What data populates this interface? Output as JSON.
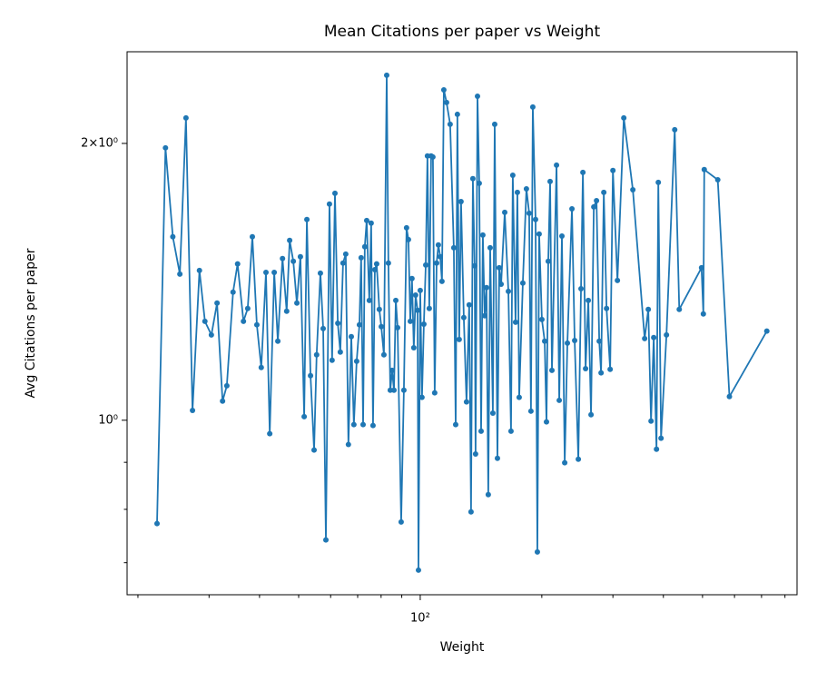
{
  "chart_data": {
    "type": "line",
    "title": "Mean Citations per paper vs Weight",
    "x_label": "Weight",
    "y_label": "Avg Citations per paper",
    "xscale": "log",
    "yscale": "log",
    "color": "#1f77b4",
    "xlim": [
      18.8,
      857
    ],
    "ylim": [
      0.646,
      2.516
    ],
    "xticks": [
      {
        "value": 100,
        "label": "10²"
      }
    ],
    "yticks": [
      {
        "value": 1,
        "label": "10⁰"
      },
      {
        "value": 2,
        "label": "2×10⁰"
      }
    ],
    "xminorticks": [
      20,
      30,
      40,
      50,
      60,
      70,
      80,
      90,
      200,
      300,
      400,
      500,
      600,
      700,
      800
    ],
    "yminorticks": [
      0.7,
      0.8,
      0.9
    ],
    "x": [
      22.3,
      23.4,
      24.4,
      25.4,
      26.3,
      27.3,
      28.4,
      29.3,
      30.4,
      31.4,
      32.4,
      33.2,
      34.4,
      35.3,
      36.5,
      37.4,
      38.4,
      39.4,
      40.4,
      41.5,
      42.4,
      43.5,
      44.4,
      45.6,
      46.7,
      47.5,
      48.5,
      49.5,
      50.5,
      51.6,
      52.4,
      53.5,
      54.6,
      55.4,
      56.6,
      57.5,
      58.4,
      59.6,
      60.5,
      61.5,
      62.5,
      63.4,
      64.4,
      65.4,
      66.4,
      67.5,
      68.5,
      69.6,
      70.7,
      71.4,
      72.2,
      72.9,
      73.7,
      74.8,
      75.6,
      76.4,
      77.2,
      78.0,
      79.2,
      80.1,
      81.3,
      82.6,
      83.4,
      84.3,
      85.2,
      86.1,
      87.0,
      87.9,
      89.7,
      91.1,
      92.5,
      93.5,
      94.5,
      95.4,
      96.4,
      97.4,
      98.5,
      99.0,
      100,
      101.0,
      102.1,
      103.2,
      104.2,
      105.3,
      106.4,
      107.5,
      108.6,
      109.8,
      110.9,
      112.1,
      113.2,
      114.4,
      116.2,
      118.6,
      121.1,
      122.4,
      123.6,
      124.9,
      126.2,
      128.2,
      130.2,
      132.2,
      133.6,
      135.0,
      136.4,
      137.1,
      138.6,
      140.0,
      141.5,
      142.9,
      144.4,
      145.9,
      147.4,
      149.0,
      151.3,
      152.9,
      155.3,
      156.9,
      158.6,
      161.9,
      165.3,
      167.8,
      169.5,
      172.2,
      174.0,
      175.8,
      179.5,
      183.2,
      186.1,
      188.0,
      190.0,
      193.0,
      195.0,
      197.0,
      200.1,
      203.3,
      205.4,
      207.5,
      209.7,
      211.9,
      217.5,
      220.9,
      224.3,
      227.9,
      231.4,
      237.5,
      241.2,
      246.3,
      250.1,
      252.8,
      256.7,
      260.7,
      264.8,
      269.0,
      273.2,
      277.5,
      280.4,
      284.8,
      289.3,
      295.3,
      300.0,
      307.8,
      319.2,
      336.1,
      359.5,
      367.0,
      372.8,
      378.6,
      384.6,
      388.6,
      394.7,
      407.1,
      426.7,
      437.9,
      497.2,
      502.4,
      505.0,
      545.4,
      582.9,
      721.4
    ],
    "values": [
      0.772,
      1.978,
      1.583,
      1.442,
      2.132,
      1.025,
      1.455,
      1.281,
      1.238,
      1.341,
      1.049,
      1.09,
      1.378,
      1.479,
      1.281,
      1.323,
      1.583,
      1.27,
      1.141,
      1.448,
      0.967,
      1.448,
      1.219,
      1.499,
      1.314,
      1.569,
      1.489,
      1.341,
      1.506,
      1.009,
      1.653,
      1.118,
      0.928,
      1.178,
      1.445,
      1.258,
      0.741,
      1.718,
      1.162,
      1.765,
      1.275,
      1.186,
      1.482,
      1.516,
      0.941,
      1.233,
      0.989,
      1.159,
      1.27,
      1.502,
      0.989,
      1.544,
      1.649,
      1.35,
      1.638,
      0.987,
      1.458,
      1.479,
      1.32,
      1.264,
      1.178,
      2.372,
      1.482,
      1.078,
      1.133,
      1.078,
      1.35,
      1.261,
      0.775,
      1.078,
      1.619,
      1.572,
      1.281,
      1.426,
      1.199,
      1.368,
      1.317,
      0.687,
      1.384,
      1.059,
      1.272,
      1.475,
      1.938,
      1.323,
      1.938,
      1.933,
      1.071,
      1.482,
      1.551,
      1.506,
      1.416,
      2.287,
      2.216,
      2.098,
      1.54,
      0.989,
      2.151,
      1.224,
      1.729,
      1.293,
      1.047,
      1.335,
      0.795,
      1.831,
      1.472,
      0.919,
      2.251,
      1.81,
      0.973,
      1.59,
      1.299,
      1.394,
      0.83,
      1.54,
      1.018,
      2.098,
      0.909,
      1.465,
      1.406,
      1.683,
      1.381,
      0.973,
      1.847,
      1.278,
      1.769,
      1.059,
      1.41,
      1.785,
      1.679,
      1.023,
      2.191,
      1.653,
      0.719,
      1.594,
      1.287,
      1.219,
      0.996,
      1.489,
      1.818,
      1.133,
      1.894,
      1.051,
      1.586,
      0.899,
      1.213,
      1.698,
      1.221,
      0.907,
      1.39,
      1.86,
      1.138,
      1.35,
      1.014,
      1.706,
      1.733,
      1.219,
      1.126,
      1.769,
      1.323,
      1.136,
      1.869,
      1.419,
      2.132,
      1.781,
      1.227,
      1.32,
      0.998,
      1.23,
      0.93,
      1.814,
      0.956,
      1.238,
      2.07,
      1.32,
      1.465,
      1.305,
      1.873,
      1.826,
      1.061,
      1.25
    ]
  }
}
